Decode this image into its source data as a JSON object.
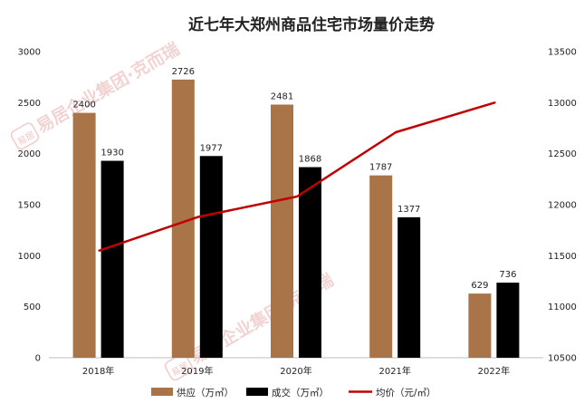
{
  "chart_data": {
    "type": "bar",
    "title": "近七年大郑州商品住宅市场量价走势",
    "categories": [
      "2018年",
      "2019年",
      "2020年",
      "2021年",
      "2022年"
    ],
    "series": [
      {
        "name": "供应（万㎡）",
        "kind": "bar",
        "axis": "left",
        "color": "#a97447",
        "values": [
          2400,
          2726,
          2481,
          1787,
          629
        ]
      },
      {
        "name": "成交（万㎡）",
        "kind": "bar",
        "axis": "left",
        "color": "#000000",
        "values": [
          1930,
          1977,
          1868,
          1377,
          736
        ]
      },
      {
        "name": "均价（元/㎡）",
        "kind": "line",
        "axis": "right",
        "color": "#c00000",
        "values": [
          11550,
          11880,
          12080,
          12710,
          13000
        ]
      }
    ],
    "ylim_left": [
      0,
      3000
    ],
    "ylim_right": [
      10500,
      13500
    ],
    "yticks_left": [
      "0",
      "500",
      "1000",
      "1500",
      "2000",
      "2500",
      "3000"
    ],
    "yticks_right": [
      "10500",
      "11000",
      "11500",
      "12000",
      "12500",
      "13000",
      "13500"
    ],
    "legend_position": "bottom",
    "grid": false
  },
  "watermark": {
    "logo": "易居",
    "text": "易居企业集团·克而瑞"
  }
}
